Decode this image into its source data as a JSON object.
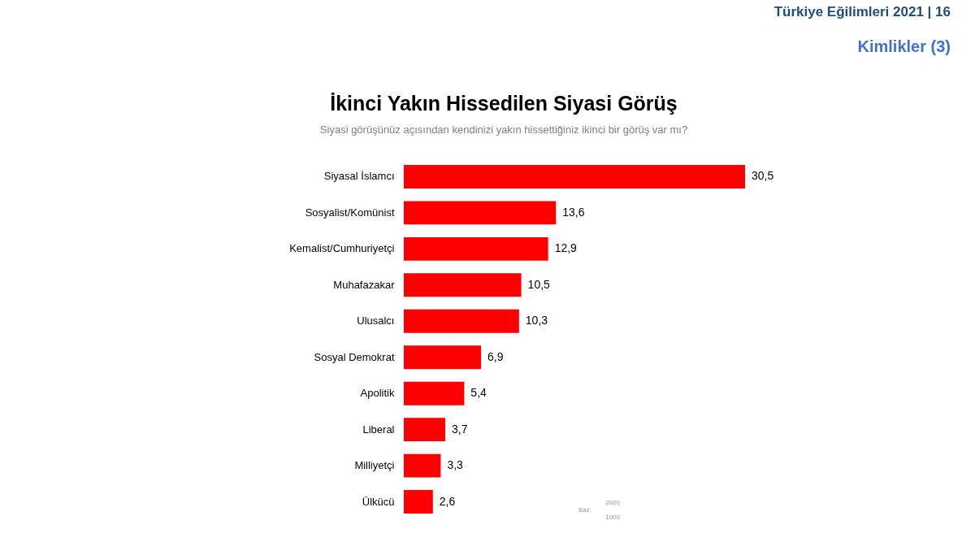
{
  "chart_data": {
    "type": "bar",
    "orientation": "horizontal",
    "title": "İkinci Yakın Hissedilen Siyasi Görüş",
    "subtitle": "Siyasi görüşünüz açısından kendinizi yakın hissettiğiniz ikinci bir görüş var mı?",
    "categories": [
      "Siyasal İslamcı",
      "Sosyalist/Komünist",
      "Kemalist/Cumhuriyetçi",
      "Muhafazakar",
      "Ulusalcı",
      "Sosyal Demokrat",
      "Apolitik",
      "Liberal",
      "Milliyetçi",
      "Ülkücü"
    ],
    "values": [
      30.5,
      13.6,
      12.9,
      10.5,
      10.3,
      6.9,
      5.4,
      3.7,
      3.3,
      2.6
    ],
    "value_labels": [
      "30,5",
      "13,6",
      "12,9",
      "10,5",
      "10,3",
      "6,9",
      "5,4",
      "3,7",
      "3,3",
      "2,6"
    ],
    "color": "#ff0000",
    "annotations": [
      "Türkiye Eğilimleri 2021 | 16",
      "Kimlikler (3)",
      "Baz",
      "2020",
      "1000"
    ]
  }
}
